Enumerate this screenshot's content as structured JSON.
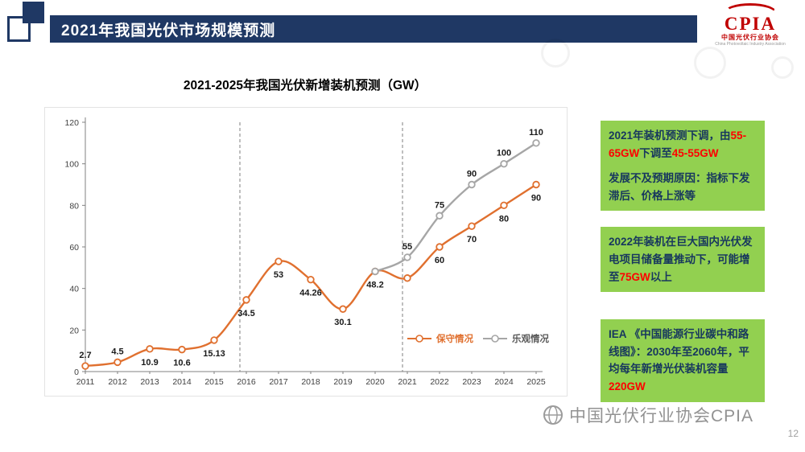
{
  "header": {
    "title": "2021年我国光伏市场规模预测",
    "logo": {
      "text": "CPIA",
      "cn": "中国光伏行业协会",
      "en": "China Photovoltaic Industry Association"
    }
  },
  "chart_data": {
    "type": "line",
    "title": "2021-2025年我国光伏新增装机预测（GW）",
    "xlabel": "",
    "ylabel": "",
    "categories": [
      "2011",
      "2012",
      "2013",
      "2014",
      "2015",
      "2016",
      "2017",
      "2018",
      "2019",
      "2020",
      "2021",
      "2022",
      "2023",
      "2024",
      "2025"
    ],
    "ylim": [
      0,
      120
    ],
    "yticks": [
      0,
      20,
      40,
      60,
      80,
      100,
      120
    ],
    "grid": false,
    "legend_position": "inside-right",
    "dividers": [
      4.8,
      9.85
    ],
    "series": [
      {
        "key": "conservative",
        "name": "保守情况",
        "color": "#E0702F",
        "values": [
          2.7,
          4.5,
          10.9,
          10.6,
          15.13,
          34.5,
          53,
          44.26,
          30.1,
          48.2,
          45,
          60,
          70,
          80,
          90
        ],
        "labels": [
          {
            "i": 0,
            "text": "2.7",
            "pos": "above"
          },
          {
            "i": 1,
            "text": "4.5",
            "pos": "above"
          },
          {
            "i": 2,
            "text": "10.9",
            "pos": "below"
          },
          {
            "i": 3,
            "text": "10.6",
            "pos": "below"
          },
          {
            "i": 4,
            "text": "15.13",
            "pos": "below"
          },
          {
            "i": 5,
            "text": "34.5",
            "pos": "below"
          },
          {
            "i": 6,
            "text": "53",
            "pos": "below"
          },
          {
            "i": 7,
            "text": "44.26",
            "pos": "below"
          },
          {
            "i": 8,
            "text": "30.1",
            "pos": "below"
          },
          {
            "i": 9,
            "text": "48.2",
            "pos": "below"
          },
          {
            "i": 11,
            "text": "60",
            "pos": "below"
          },
          {
            "i": 12,
            "text": "70",
            "pos": "below"
          },
          {
            "i": 13,
            "text": "80",
            "pos": "below"
          },
          {
            "i": 14,
            "text": "90",
            "pos": "below"
          }
        ]
      },
      {
        "key": "optimistic",
        "name": "乐观情况",
        "color": "#A6A6A6",
        "values": [
          null,
          null,
          null,
          null,
          null,
          null,
          null,
          null,
          null,
          48.2,
          55,
          75,
          90,
          100,
          110
        ],
        "labels": [
          {
            "i": 10,
            "text": "55",
            "pos": "above"
          },
          {
            "i": 11,
            "text": "75",
            "pos": "above"
          },
          {
            "i": 12,
            "text": "90",
            "pos": "above"
          },
          {
            "i": 13,
            "text": "100",
            "pos": "above"
          },
          {
            "i": 14,
            "text": "110",
            "pos": "above"
          }
        ]
      }
    ]
  },
  "notes": [
    {
      "paragraphs": [
        [
          {
            "t": "2021年装机预测下调，由"
          },
          {
            "t": "55-65GW",
            "c": "red"
          },
          {
            "t": "下调至"
          },
          {
            "t": "45-55GW",
            "c": "red"
          }
        ],
        [
          {
            "t": "发展不及预期原因：指标下发滞后、价格上涨等"
          }
        ]
      ]
    },
    {
      "paragraphs": [
        [
          {
            "t": "2022年装机在巨大国内光伏发电项目储备量推动下，可能增至"
          },
          {
            "t": "75GW",
            "c": "red"
          },
          {
            "t": "以上"
          }
        ]
      ]
    },
    {
      "paragraphs": [
        [
          {
            "t": "IEA 《中国能源行业碳中和路线图》：2030年至2060年，平均每年新增光伏装机容量"
          },
          {
            "t": "220GW",
            "c": "red"
          }
        ]
      ]
    }
  ],
  "watermark": {
    "text": "中国光伏行业协会CPIA"
  },
  "page_number": "12"
}
